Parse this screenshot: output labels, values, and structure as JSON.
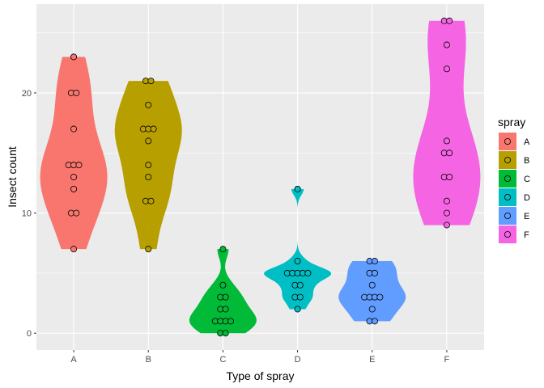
{
  "chart_data": {
    "type": "violin",
    "title": "",
    "xlabel": "Type of spray",
    "ylabel": "Insect count",
    "ylim": [
      -1.4,
      27.4
    ],
    "yticks": [
      0,
      10,
      20
    ],
    "grid": true,
    "legend": {
      "title": "spray",
      "position": "right"
    },
    "categories": [
      "A",
      "B",
      "C",
      "D",
      "E",
      "F"
    ],
    "colors": {
      "A": "#F8766D",
      "B": "#B79F00",
      "C": "#00BA38",
      "D": "#00BFC4",
      "E": "#619CFF",
      "F": "#F564E3"
    },
    "series": [
      {
        "name": "A",
        "values": [
          10,
          7,
          20,
          14,
          14,
          12,
          10,
          23,
          17,
          20,
          14,
          13
        ]
      },
      {
        "name": "B",
        "values": [
          11,
          17,
          21,
          11,
          16,
          14,
          17,
          17,
          19,
          21,
          7,
          13
        ]
      },
      {
        "name": "C",
        "values": [
          0,
          1,
          7,
          2,
          3,
          1,
          2,
          1,
          3,
          0,
          1,
          4
        ]
      },
      {
        "name": "D",
        "values": [
          3,
          5,
          12,
          6,
          4,
          3,
          5,
          5,
          5,
          5,
          2,
          4
        ]
      },
      {
        "name": "E",
        "values": [
          3,
          5,
          3,
          5,
          3,
          6,
          1,
          1,
          3,
          2,
          6,
          4
        ]
      },
      {
        "name": "F",
        "values": [
          11,
          9,
          15,
          22,
          15,
          16,
          13,
          10,
          26,
          26,
          24,
          13
        ]
      }
    ]
  }
}
